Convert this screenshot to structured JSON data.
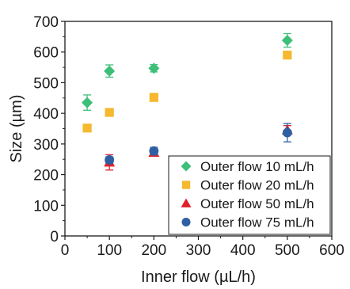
{
  "chart_data": {
    "type": "scatter",
    "title": "",
    "xlabel": "Inner flow (µL/h)",
    "ylabel": "Size (µm)",
    "xlim": [
      0,
      600
    ],
    "ylim": [
      0,
      700
    ],
    "xticks": [
      0,
      100,
      200,
      300,
      400,
      500,
      600
    ],
    "yticks": [
      0,
      100,
      200,
      300,
      400,
      500,
      600,
      700
    ],
    "x_tick_labels": [
      "0",
      "100",
      "200",
      "300",
      "400",
      "500",
      "600"
    ],
    "y_tick_labels": [
      "0",
      "100",
      "200",
      "300",
      "400",
      "500",
      "600",
      "700"
    ],
    "grid": false,
    "legend_position": "bottom-right",
    "series": [
      {
        "name": "Outer flow 10 mL/h",
        "marker": "diamond",
        "color": "#3dbf78",
        "x": [
          50,
          100,
          200,
          500
        ],
        "y": [
          435,
          538,
          547,
          638
        ],
        "err": [
          25,
          20,
          12,
          22
        ]
      },
      {
        "name": "Outer flow 20 mL/h",
        "marker": "square",
        "color": "#f5b82e",
        "x": [
          50,
          100,
          200,
          500
        ],
        "y": [
          352,
          403,
          452,
          590
        ],
        "err": [
          5,
          5,
          13,
          12
        ]
      },
      {
        "name": "Outer flow 50 mL/h",
        "marker": "triangle",
        "color": "#e0202a",
        "x": [
          100,
          200,
          500
        ],
        "y": [
          240,
          272,
          345
        ],
        "err": [
          25,
          10,
          15
        ]
      },
      {
        "name": "Outer flow 75 mL/h",
        "marker": "circle",
        "color": "#2e5fa3",
        "x": [
          100,
          200,
          500
        ],
        "y": [
          248,
          277,
          337
        ],
        "err": [
          10,
          12,
          30
        ]
      }
    ]
  }
}
